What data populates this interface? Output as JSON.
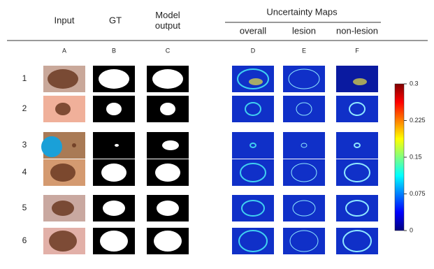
{
  "header": {
    "columns": [
      "Input",
      "GT",
      "Model output"
    ],
    "group_title": "Uncertainty Maps",
    "group_columns": [
      "overall",
      "lesion",
      "non-lesion"
    ]
  },
  "column_letters": [
    "A",
    "B",
    "C",
    "D",
    "E",
    "F"
  ],
  "row_labels": [
    "1",
    "2",
    "3",
    "4",
    "5",
    "6"
  ],
  "colorbar": {
    "lim": [
      0,
      0.3
    ],
    "ticks": [
      0,
      0.075,
      0.15,
      0.225,
      0.3
    ]
  }
}
